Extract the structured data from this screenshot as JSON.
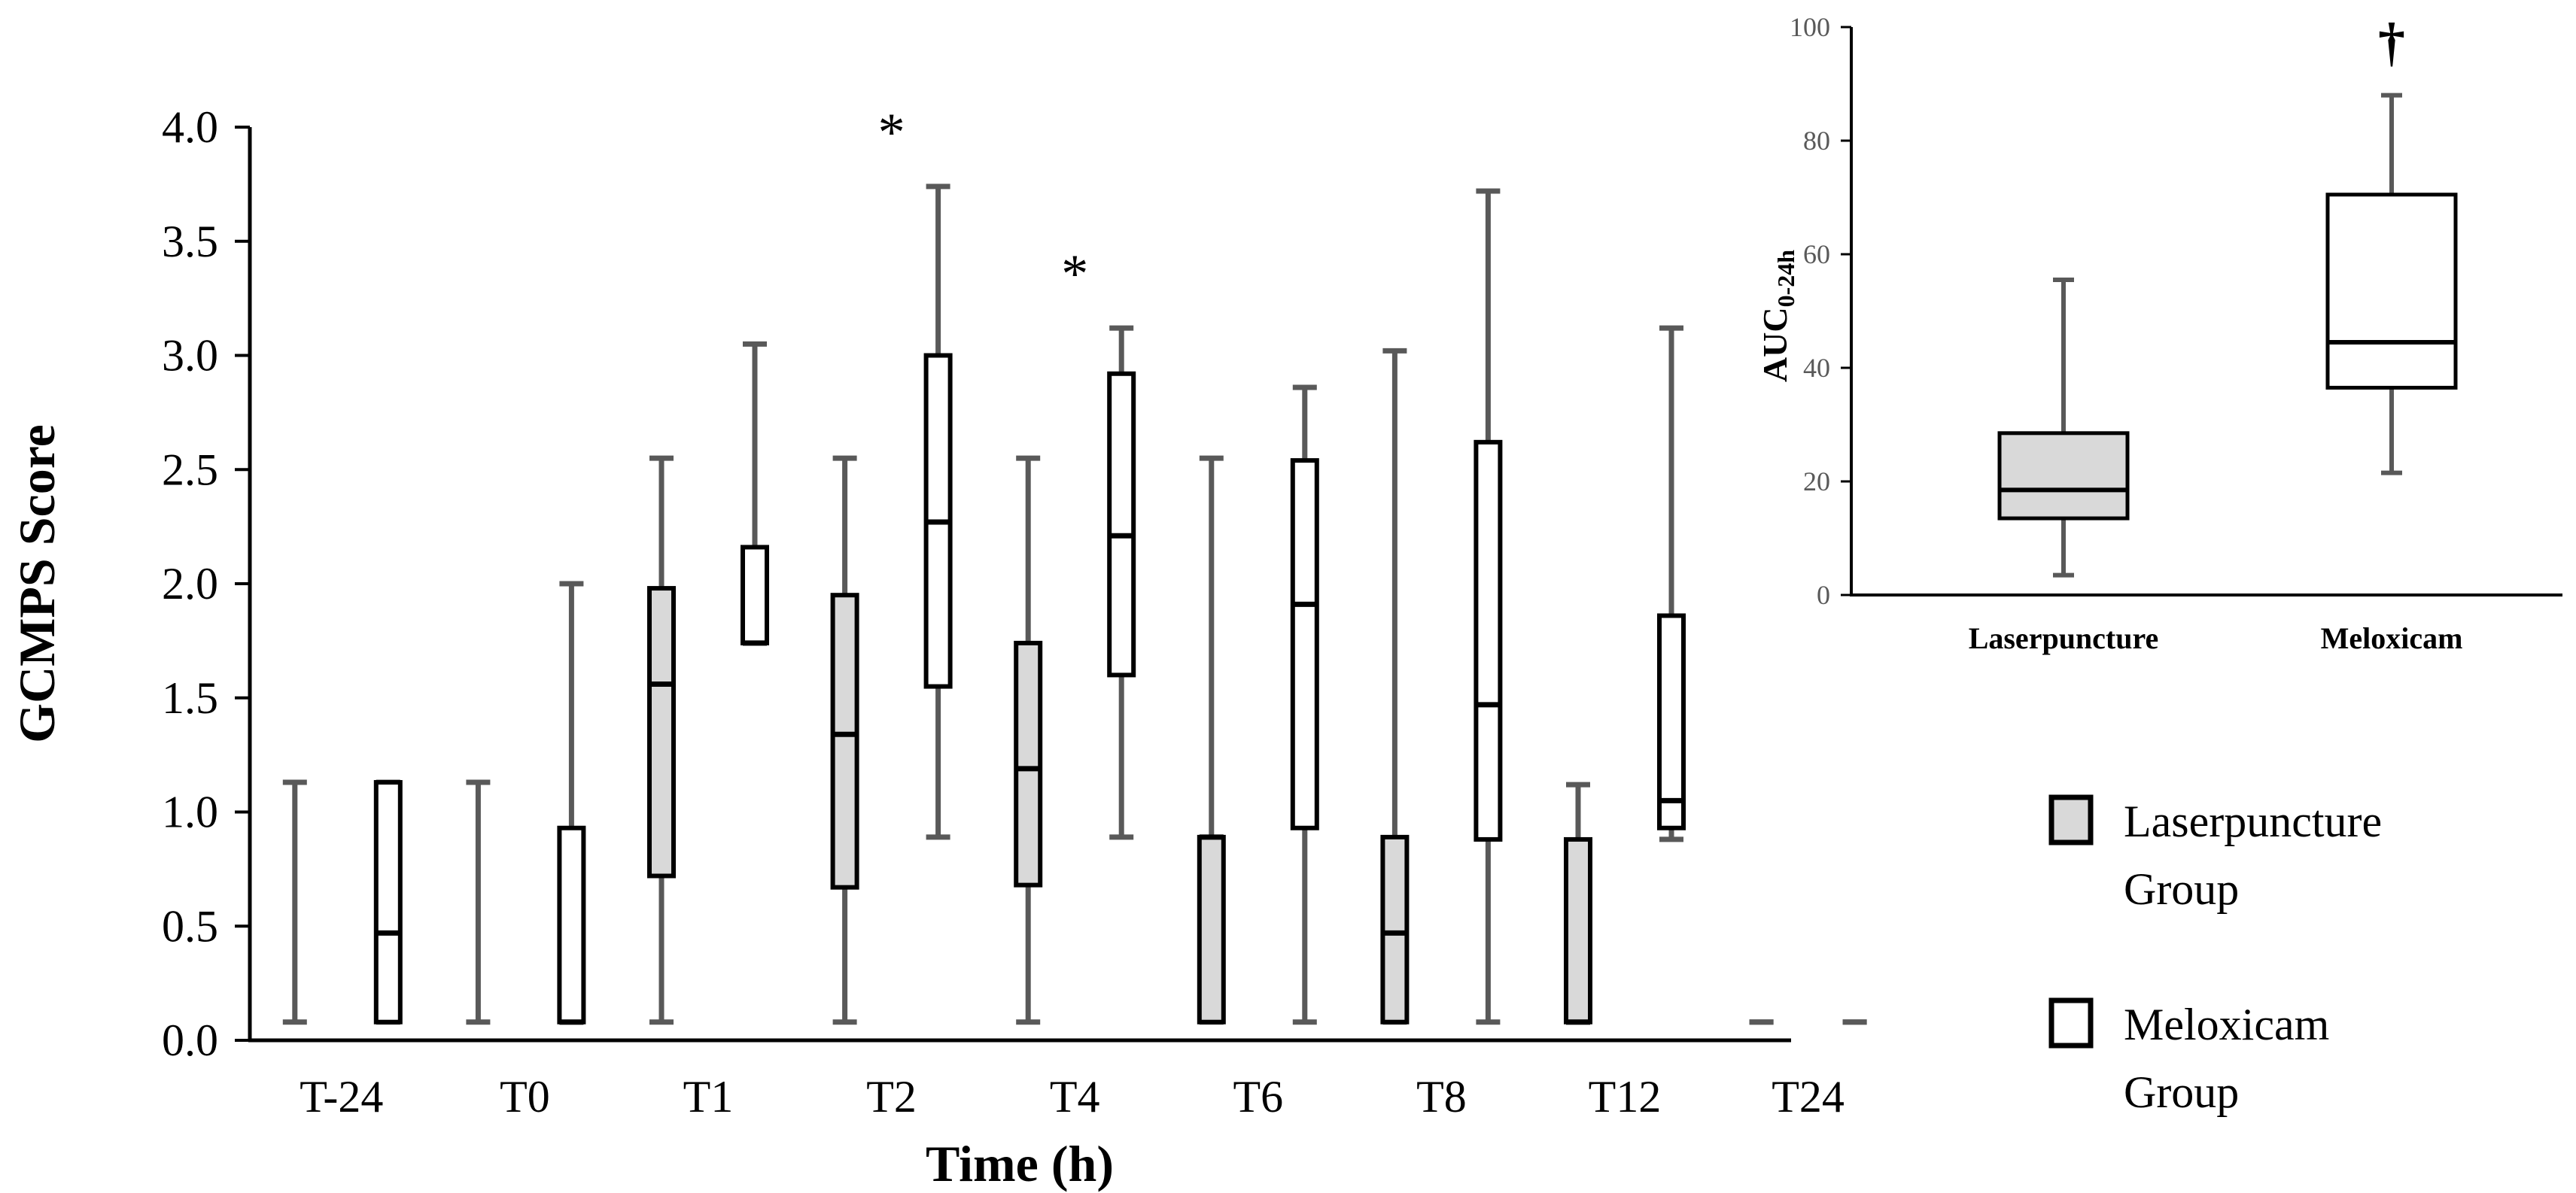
{
  "chart_data": [
    {
      "type": "boxplot",
      "ylabel": "GCMPS Score",
      "xlabel": "Time (h)",
      "ylim": [
        0,
        4.0
      ],
      "yticks": [
        "0.0",
        "0.5",
        "1.0",
        "1.5",
        "2.0",
        "2.5",
        "3.0",
        "3.5",
        "4.0"
      ],
      "categories": [
        "T-24",
        "T0",
        "T1",
        "T2",
        "T4",
        "T6",
        "T8",
        "T12",
        "T24"
      ],
      "series": [
        {
          "name": "Laserpuncture Group",
          "color": "#d9d9d9",
          "boxes": [
            {
              "min": 0.08,
              "q1": 0.08,
              "median": 0.08,
              "q3": 0.08,
              "max": 1.13
            },
            {
              "min": 0.08,
              "q1": 0.08,
              "median": 0.08,
              "q3": 0.08,
              "max": 1.13
            },
            {
              "min": 0.08,
              "q1": 0.72,
              "median": 1.56,
              "q3": 1.98,
              "max": 2.55
            },
            {
              "min": 0.08,
              "q1": 0.67,
              "median": 1.34,
              "q3": 1.95,
              "max": 2.55
            },
            {
              "min": 0.08,
              "q1": 0.68,
              "median": 1.19,
              "q3": 1.74,
              "max": 2.55
            },
            {
              "min": 0.08,
              "q1": 0.08,
              "median": 0.89,
              "q3": 0.89,
              "max": 2.55
            },
            {
              "min": 0.08,
              "q1": 0.08,
              "median": 0.47,
              "q3": 0.89,
              "max": 3.02
            },
            {
              "min": 0.08,
              "q1": 0.08,
              "median": 0.08,
              "q3": 0.88,
              "max": 1.12
            },
            {
              "min": 0.08,
              "q1": 0.08,
              "median": 0.08,
              "q3": 0.08,
              "max": 0.08
            }
          ]
        },
        {
          "name": "Meloxicam Group",
          "color": "#ffffff",
          "boxes": [
            {
              "min": 0.08,
              "q1": 0.08,
              "median": 0.47,
              "q3": 1.13,
              "max": 1.13
            },
            {
              "min": 0.08,
              "q1": 0.08,
              "median": 0.08,
              "q3": 0.93,
              "max": 2.0
            },
            {
              "min": 1.74,
              "q1": 1.74,
              "median": 1.74,
              "q3": 2.16,
              "max": 3.05
            },
            {
              "min": 0.89,
              "q1": 1.55,
              "median": 2.27,
              "q3": 3.0,
              "max": 3.74
            },
            {
              "min": 0.89,
              "q1": 1.6,
              "median": 2.21,
              "q3": 2.92,
              "max": 3.12
            },
            {
              "min": 0.08,
              "q1": 0.93,
              "median": 1.91,
              "q3": 2.54,
              "max": 2.86
            },
            {
              "min": 0.08,
              "q1": 0.88,
              "median": 1.47,
              "q3": 2.62,
              "max": 3.72
            },
            {
              "min": 0.88,
              "q1": 0.93,
              "median": 1.05,
              "q3": 1.86,
              "max": 3.12
            },
            {
              "min": 0.08,
              "q1": 0.08,
              "median": 0.08,
              "q3": 0.08,
              "max": 0.08
            }
          ]
        }
      ],
      "annotations": [
        {
          "category": "T2",
          "text": "*"
        },
        {
          "category": "T4",
          "text": "*"
        }
      ],
      "legend": {
        "position": "right",
        "items": [
          {
            "line1": "Laserpuncture",
            "line2": "Group",
            "color": "#d9d9d9"
          },
          {
            "line1": "Meloxicam",
            "line2": "Group",
            "color": "#ffffff"
          }
        ]
      }
    },
    {
      "type": "boxplot",
      "ylabel_main": "AUC",
      "ylabel_sub": "0-24h",
      "ylim": [
        0,
        100
      ],
      "yticks": [
        "0",
        "20",
        "40",
        "60",
        "80",
        "100"
      ],
      "categories": [
        "Laserpuncture",
        "Meloxicam"
      ],
      "boxes": [
        {
          "min": 3.5,
          "q1": 13.5,
          "median": 18.5,
          "q3": 28.5,
          "max": 55.5,
          "color": "#d9d9d9"
        },
        {
          "min": 21.5,
          "q1": 36.5,
          "median": 44.5,
          "q3": 70.5,
          "max": 88.0,
          "color": "#ffffff"
        }
      ],
      "annotations": [
        {
          "category": "Meloxicam",
          "text": "†"
        }
      ]
    }
  ]
}
